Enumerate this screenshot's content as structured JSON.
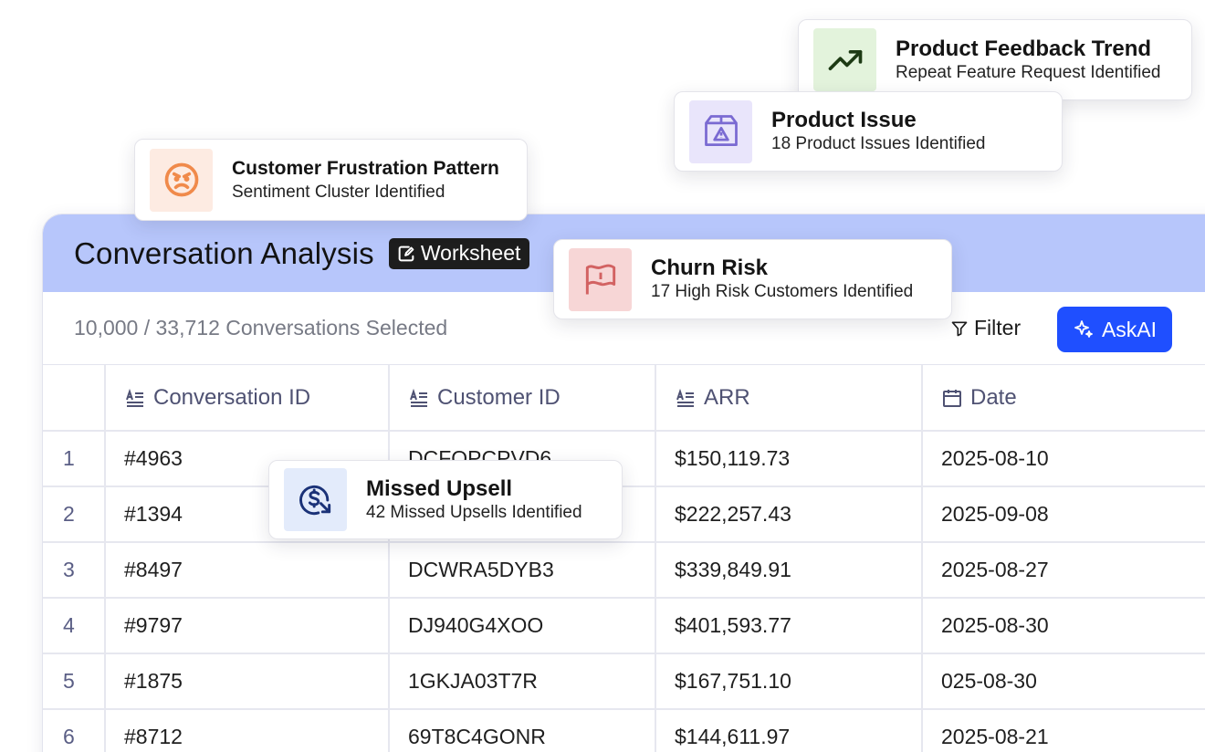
{
  "panel": {
    "title": "Conversation Analysis",
    "badge": "Worksheet",
    "selected_count": "10,000 / 33,712 Conversations Selected",
    "filter_label": "Filter",
    "askai_label": "AskAI"
  },
  "table": {
    "columns": [
      "Conversation ID",
      "Customer ID",
      "ARR",
      "Date"
    ],
    "rows": [
      {
        "num": "1",
        "conversation_id": "#4963",
        "customer_id": "DCFOPCPVD6",
        "arr": "$150,119.73",
        "date": "2025-08-10"
      },
      {
        "num": "2",
        "conversation_id": "#1394",
        "customer_id": "",
        "arr": "$222,257.43",
        "date": "2025-09-08"
      },
      {
        "num": "3",
        "conversation_id": "#8497",
        "customer_id": "DCWRA5DYB3",
        "arr": "$339,849.91",
        "date": "2025-08-27"
      },
      {
        "num": "4",
        "conversation_id": "#9797",
        "customer_id": "DJ940G4XOO",
        "arr": "$401,593.77",
        "date": "2025-08-30"
      },
      {
        "num": "5",
        "conversation_id": "#1875",
        "customer_id": "1GKJA03T7R",
        "arr": "$167,751.10",
        "date": "025-08-30"
      },
      {
        "num": "6",
        "conversation_id": "#8712",
        "customer_id": "69T8C4GONR",
        "arr": "$144,611.97",
        "date": "2025-08-21"
      }
    ]
  },
  "cards": {
    "feedback": {
      "title": "Product Feedback Trend",
      "subtitle": "Repeat Feature Request Identified",
      "icon": "trend-up-icon",
      "bg": "#e3f3dc",
      "color": "#1d3a14"
    },
    "issue": {
      "title": "Product Issue",
      "subtitle": "18 Product Issues Identified",
      "icon": "box-warning-icon",
      "bg": "#e9e5fb",
      "color": "#7a6ad2"
    },
    "frustration": {
      "title": "Customer Frustration Pattern",
      "subtitle": "Sentiment Cluster Identified",
      "icon": "angry-face-icon",
      "bg": "#fdebe2",
      "color": "#f08a4b"
    },
    "churn": {
      "title": "Churn Risk",
      "subtitle": "17 High Risk Customers Identified",
      "icon": "flag-alert-icon",
      "bg": "#f7d6d6",
      "color": "#d26262"
    },
    "upsell": {
      "title": "Missed Upsell",
      "subtitle": "42 Missed Upsells Identified",
      "icon": "dollar-down-icon",
      "bg": "#e3ebfb",
      "color": "#1b3278"
    }
  },
  "colors": {
    "header_bg": "#b7c6fb",
    "accent": "#1f4fff"
  }
}
